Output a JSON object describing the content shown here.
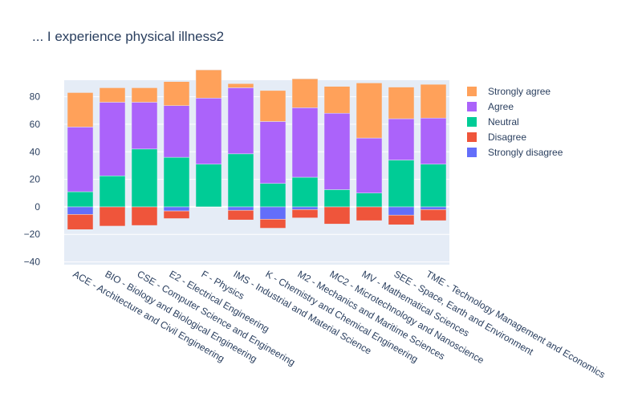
{
  "chart_data": {
    "type": "bar",
    "barmode": "relative",
    "title": "... I experience physical illness2",
    "xlabel": "",
    "ylabel": "",
    "ylim": [
      -42,
      92
    ],
    "yticks": [
      -40,
      -20,
      0,
      20,
      40,
      60,
      80
    ],
    "grid": true,
    "legend_position": "top-right",
    "categories": [
      "ACE - Architecture and Civil Engineering",
      "BIO - Biology and Biological Engineering",
      "CSE - Computer Science and Engineering",
      "E2 - Electrical Engineering",
      "F - Physics",
      "IMS - Industrial and Material Science",
      "K - Chemistry and Chemical Engineering",
      "M2 - Mechanics and Maritime Sciences",
      "MC2 - Microtechnology and Nanoscience",
      "MV - Mathematical Sciences",
      "SEE - Space, Earth and Environment",
      "TME - Technology Management and Economics"
    ],
    "series": [
      {
        "name": "Strongly disagree",
        "color": "#636efa",
        "values": [
          -5.5,
          0,
          0,
          -3,
          0,
          -2.5,
          -9,
          -2,
          0,
          0,
          -6,
          -2
        ]
      },
      {
        "name": "Disagree",
        "color": "#ef553b",
        "values": [
          -11,
          -14,
          -13.5,
          -5.5,
          0,
          -7,
          -6.5,
          -6,
          -12.5,
          -10,
          -7,
          -8
        ]
      },
      {
        "name": "Neutral",
        "color": "#00cc96",
        "values": [
          11,
          22.5,
          42,
          36,
          31,
          38.5,
          17,
          21.5,
          12.5,
          10,
          34,
          31
        ]
      },
      {
        "name": "Agree",
        "color": "#ab63fa",
        "values": [
          47,
          53.5,
          34,
          37.5,
          48,
          48,
          45,
          50.5,
          55.5,
          40,
          30,
          33.5
        ]
      },
      {
        "name": "Strongly agree",
        "color": "#ffa15a",
        "values": [
          25,
          10.5,
          10.5,
          17.5,
          20.5,
          3,
          22.5,
          21,
          19.5,
          40,
          23,
          24.5
        ]
      }
    ]
  }
}
